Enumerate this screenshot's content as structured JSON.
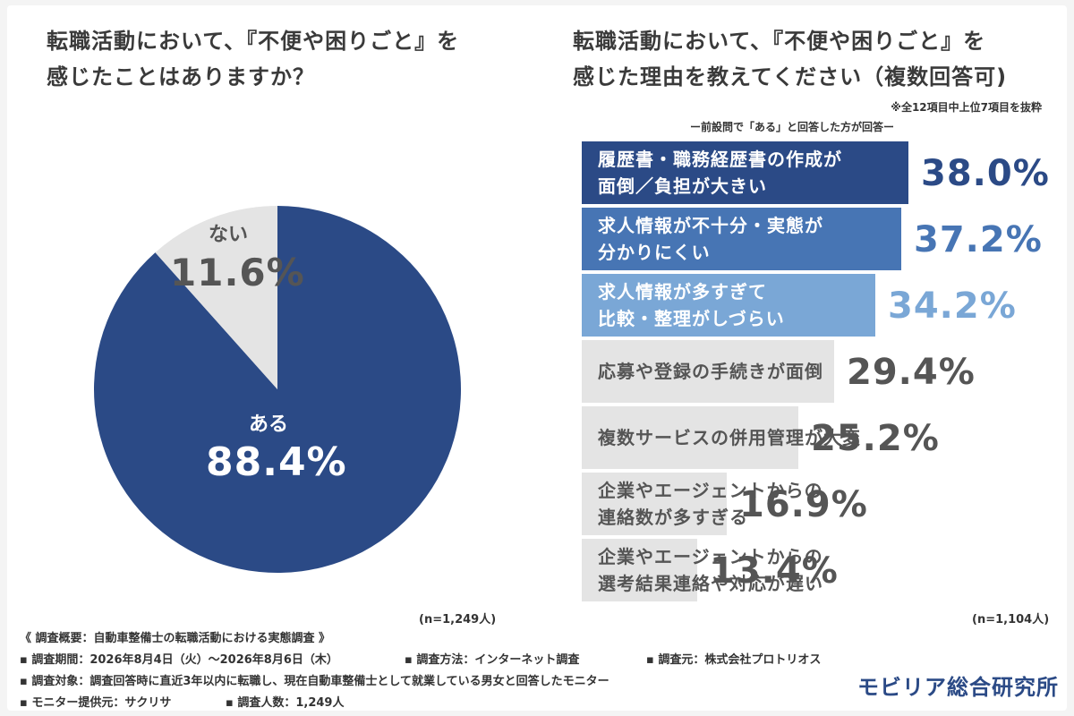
{
  "colors": {
    "pie_main": "#2b4a86",
    "pie_other": "#e4e4e4",
    "bar_1": "#2b4a86",
    "bar_2": "#4775b4",
    "bar_3": "#7aa7d6",
    "bar_rest": "#e4e4e4",
    "value_1": "#2b4a86",
    "value_2": "#4775b4",
    "value_3": "#7aa7d6",
    "value_rest": "#555555"
  },
  "pie": {
    "title_line1": "転職活動において、『不便や困りごと』を",
    "title_line2": "感じたことはありますか？",
    "n": "(n=1,249人)"
  },
  "bar": {
    "title_line1": "転職活動において、『不便や困りごと』を",
    "title_line2": "感じた理由を教えてください（複数回答可)",
    "note": "※全12項目中上位7項目を抜粋",
    "subnote": "ー前設問で「ある」と回答した方が回答ー",
    "n": "(n=1,104人)"
  },
  "chart_data": [
    {
      "type": "pie",
      "title": "転職活動において、『不便や困りごと』を感じたことはありますか？",
      "slices": [
        {
          "label": "ある",
          "value": 88.4,
          "display": "88.4%"
        },
        {
          "label": "ない",
          "value": 11.6,
          "display": "11.6%"
        }
      ]
    },
    {
      "type": "bar",
      "orientation": "horizontal",
      "title": "転職活動において、『不便や困りごと』を感じた理由を教えてください（複数回答可)",
      "categories": [
        [
          "履歴書・職務経歴書の作成が",
          "面倒／負担が大きい"
        ],
        [
          "求人情報が不十分・実態が",
          "分かりにくい"
        ],
        [
          "求人情報が多すぎて",
          "比較・整理がしづらい"
        ],
        [
          "応募や登録の手続きが面倒"
        ],
        [
          "複数サービスの併用管理が大変"
        ],
        [
          "企業やエージェントからの",
          "連絡数が多すぎる"
        ],
        [
          "企業やエージェントからの",
          "選考結果連絡や対応が遅い"
        ]
      ],
      "values": [
        38.0,
        37.2,
        34.2,
        29.4,
        25.2,
        16.9,
        13.4
      ],
      "value_labels": [
        "38.0%",
        "37.2%",
        "34.2%",
        "29.4%",
        "25.2%",
        "16.9%",
        "13.4%"
      ],
      "xlim": [
        0,
        50
      ]
    }
  ],
  "footer": {
    "line1": "《 調査概要：自動車整備士の転職活動における実態調査 》",
    "period": "▪ 調査期間：2026年8月4日（火）～2026年8月6日（木）",
    "method": "▪ 調査方法：インターネット調査",
    "source": "▪ 調査元：株式会社プロトリオス",
    "target": "▪ 調査対象：調査回答時に直近3年以内に転職し、現在自動車整備士として就業している男女と回答したモニター",
    "provider": "▪ モニター提供元：サクリサ",
    "count": "▪ 調査人数：1,249人",
    "logo": "モビリア総合研究所"
  }
}
